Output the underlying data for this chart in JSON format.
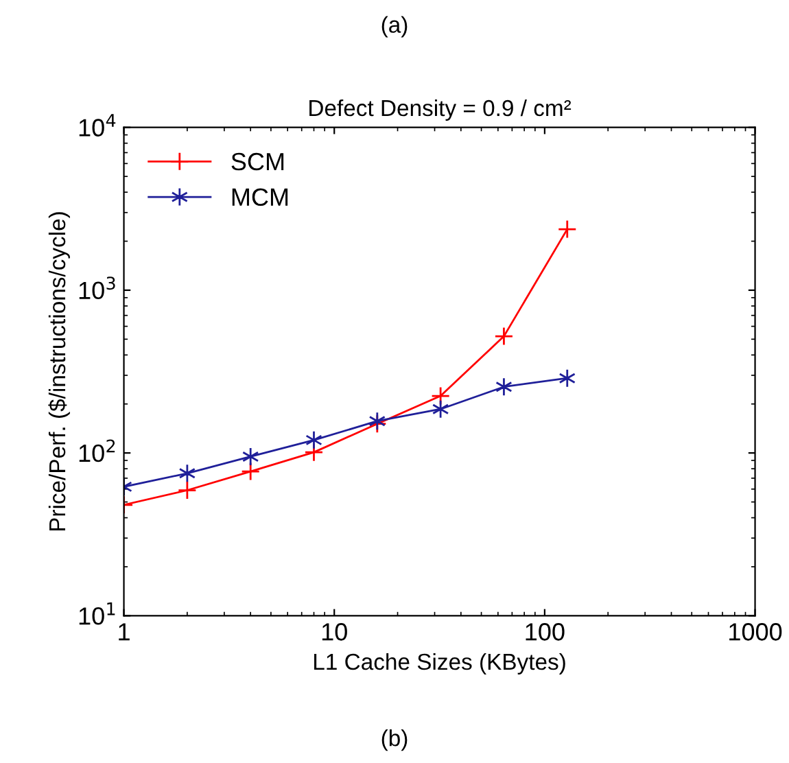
{
  "chart_data": {
    "type": "line",
    "title": "Defect Density = 0.9 / cm²",
    "xlabel": "L1 Cache Sizes (KBytes)",
    "ylabel": "Price/Perf. ($/instructions/cycle)",
    "annotations": [
      "(a)",
      "(b)"
    ],
    "x": [
      1,
      2,
      4,
      8,
      16,
      32,
      64,
      128
    ],
    "series": [
      {
        "name": "SCM",
        "color": "#ff0000",
        "marker": "plus",
        "values": [
          48,
          59,
          77,
          101,
          151,
          224,
          521,
          2370
        ]
      },
      {
        "name": "MCM",
        "color": "#1f1f99",
        "marker": "cross",
        "values": [
          62,
          75,
          95,
          120,
          157,
          186,
          255,
          288
        ]
      }
    ],
    "log": "xy",
    "xlim": [
      1,
      1000
    ],
    "ylim": [
      10,
      10000
    ],
    "xticks": [
      1,
      10,
      100,
      1000
    ],
    "yticks": [
      {
        "value": 10,
        "label": "10$^{1}$"
      },
      {
        "value": 100,
        "label": "10$^{2}$"
      },
      {
        "value": 1000,
        "label": "10$^{3}$"
      },
      {
        "value": 10000,
        "label": "10$^{4}$"
      }
    ],
    "grid": false,
    "legend": "top left",
    "line_style": "solid"
  }
}
